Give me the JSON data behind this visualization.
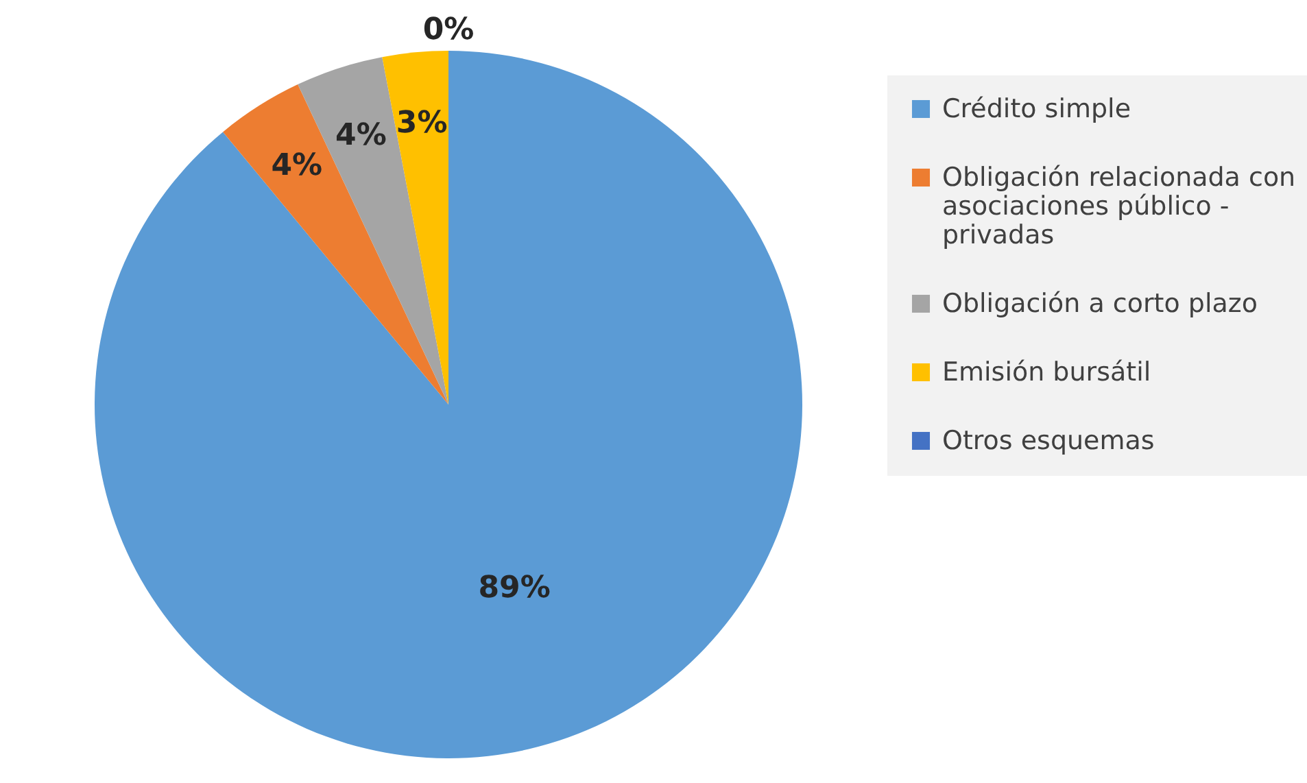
{
  "chart_data": {
    "type": "pie",
    "categories": [
      "Crédito simple",
      "Obligación relacionada con asociaciones público - privadas",
      "Obligación a corto plazo",
      "Emisión bursátil",
      "Otros esquemas"
    ],
    "values": [
      89,
      4,
      4,
      3,
      0
    ],
    "colors": [
      "#5b9bd5",
      "#ed7d31",
      "#a5a5a5",
      "#ffc000",
      "#4472c4"
    ],
    "value_labels": [
      "89%",
      "4%",
      "4%",
      "3%",
      "0%"
    ],
    "legend": "right"
  }
}
